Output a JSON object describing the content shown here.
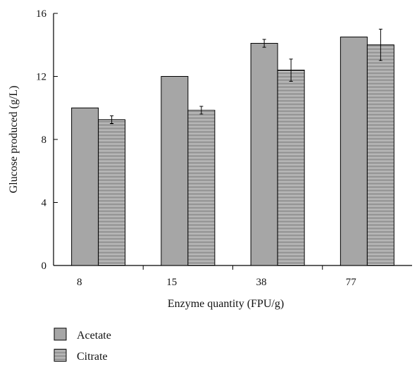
{
  "chart_data": {
    "type": "bar",
    "categories": [
      "8",
      "15",
      "38",
      "77"
    ],
    "series": [
      {
        "name": "Acetate",
        "values": [
          10.0,
          12.0,
          14.1,
          14.5
        ],
        "errors": [
          0.0,
          0.0,
          0.25,
          0.0
        ],
        "fill": "#a6a6a6",
        "pattern": "solid"
      },
      {
        "name": "Citrate",
        "values": [
          9.25,
          9.85,
          12.4,
          14.0
        ],
        "errors": [
          0.25,
          0.25,
          0.7,
          1.0
        ],
        "fill": "#ffffff",
        "pattern": "horizontal-lines"
      }
    ],
    "xlabel": "Enzyme quantity (FPU/g)",
    "ylabel": "Glucose produced (g/L)",
    "ylim": [
      0,
      16
    ],
    "yticks": [
      0,
      4,
      8,
      12,
      16
    ],
    "grid": false,
    "legend": "bottom-left"
  }
}
